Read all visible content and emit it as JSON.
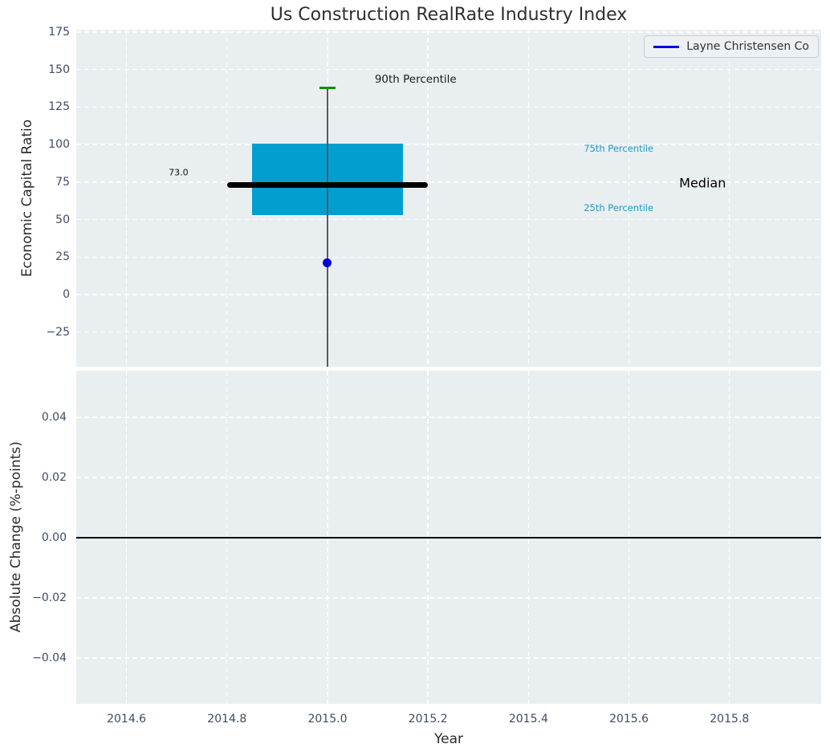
{
  "title": "Us Construction RealRate Industry Index",
  "legend": {
    "label": "Layne Christensen Co",
    "line_color": "#0000dd"
  },
  "colors": {
    "panel_background": "#e9eef0",
    "gridline": "#ffffff",
    "tick_label": "#3d4c63",
    "axis_label": "#2b2b2b",
    "box_fill": "#009fd0",
    "median_line": "#000000",
    "whisker": "#5a5a5a",
    "percentile_cap": "#0f8f0f",
    "company_point": "#0000dd",
    "percentile_text": "#1e9ac8",
    "zero_line": "#000000"
  },
  "chart_data": [
    {
      "type": "boxplot",
      "name": "economic-capital-ratio-panel",
      "ylabel": "Economic Capital Ratio",
      "xlim": [
        2014.5,
        2015.9825
      ],
      "ylim": [
        -48.2,
        176.6
      ],
      "yticks": [
        175,
        150,
        125,
        100,
        75,
        50,
        25,
        0,
        -25
      ],
      "ytick_labels": [
        "175",
        "150",
        "125",
        "100",
        "75",
        "50",
        "25",
        "0",
        "−25"
      ],
      "xticks": [
        2014.6,
        2014.8,
        2015.0,
        2015.2,
        2015.4,
        2015.6,
        2015.8
      ],
      "grid": true,
      "box": {
        "center_x": 2015.0,
        "box_x_left": 2014.85,
        "box_x_right": 2015.15,
        "q1": 53.0,
        "q3": 100.5,
        "median": 73.0,
        "median_x_left": 2014.8,
        "median_x_right": 2015.2,
        "p90": 138.0,
        "cap_width_years": 0.032,
        "whisker_extends_below_axis": true
      },
      "point": {
        "series": "Layne Christensen Co",
        "x": 2015.0,
        "y": 21.0
      },
      "annotations": [
        {
          "name": "p90-label",
          "text": "90th Percentile",
          "x": 2015.094,
          "y": 143.5,
          "color": "#1a1a1a",
          "size": 13.5
        },
        {
          "name": "p75-label",
          "text": "75th Percentile",
          "x": 2015.51,
          "y": 97.4,
          "color": "#1e9ac8",
          "size": 11.5
        },
        {
          "name": "median-label",
          "text": "Median",
          "x": 2015.7,
          "y": 74.4,
          "color": "#000000",
          "size": 16
        },
        {
          "name": "p25-label",
          "text": "25th Percentile",
          "x": 2015.51,
          "y": 57.8,
          "color": "#1e9ac8",
          "size": 11.5
        },
        {
          "name": "median-value",
          "text": "73.0",
          "x": 2014.684,
          "y": 81.4,
          "color": "#111111",
          "size": 11
        }
      ],
      "legend_position": "upper right"
    },
    {
      "type": "line",
      "name": "absolute-change-panel",
      "ylabel": "Absolute Change (%-points)",
      "xlabel": "Year",
      "xlim": [
        2014.5,
        2015.9825
      ],
      "ylim": [
        -0.0552,
        0.0555
      ],
      "yticks": [
        0.04,
        0.02,
        0.0,
        -0.02,
        -0.04
      ],
      "ytick_labels": [
        "0.04",
        "0.02",
        "0.00",
        "−0.02",
        "−0.04"
      ],
      "xticks": [
        2014.6,
        2014.8,
        2015.0,
        2015.2,
        2015.4,
        2015.6,
        2015.8
      ],
      "xtick_labels": [
        "2014.6",
        "2014.8",
        "2015.0",
        "2015.2",
        "2015.4",
        "2015.6",
        "2015.8"
      ],
      "grid": true,
      "zero_line": {
        "y": 0.0
      },
      "series": []
    }
  ]
}
